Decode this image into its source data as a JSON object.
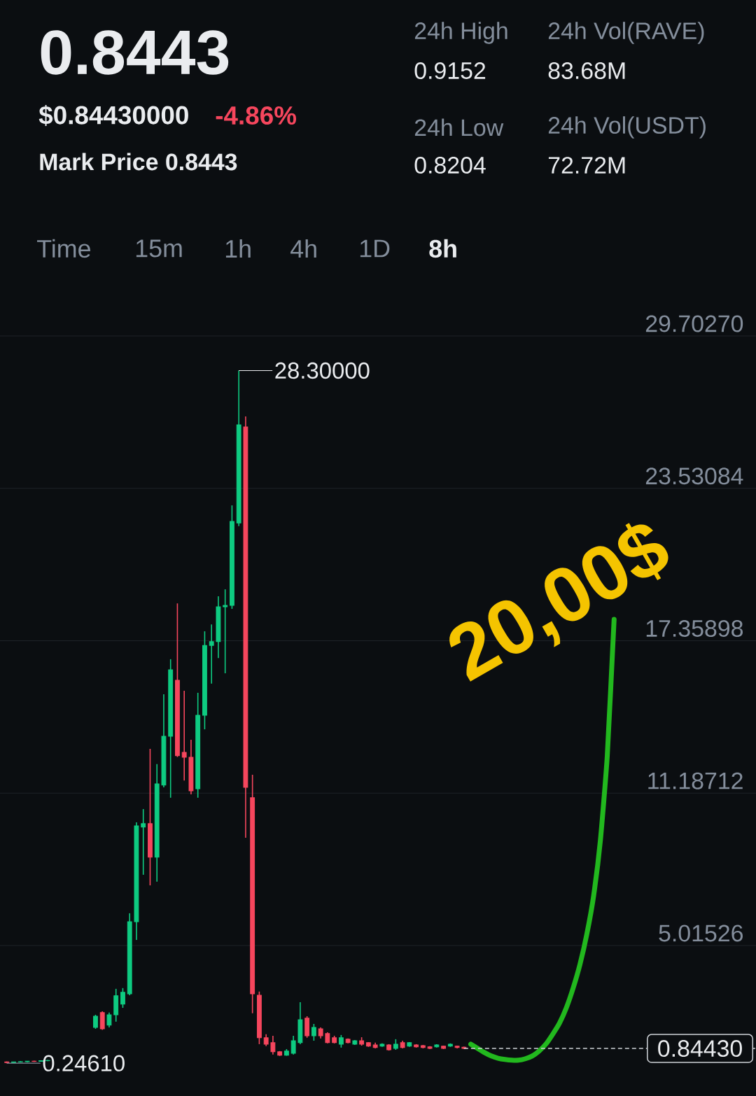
{
  "chart_data": {
    "type": "candlestick",
    "title": "0.8443",
    "annotations": [
      "$0.84430000",
      "-4.86%",
      "Mark Price 0.8443",
      "24h High",
      "0.9152",
      "24h Vol(RAVE)",
      "83.68M",
      "24h Low",
      "0.8204",
      "24h Vol(USDT)",
      "72.72M",
      "Time",
      "15m",
      "1h",
      "4h",
      "1D",
      "8h",
      "20,00$",
      "28.30000",
      "0.24610"
    ],
    "categories": [
      null,
      null,
      null,
      null,
      null,
      null,
      null,
      null,
      null,
      null,
      null,
      null,
      null,
      null,
      null,
      null,
      null,
      null,
      null,
      null,
      null,
      null,
      null,
      null,
      null,
      null,
      null,
      null,
      null,
      null,
      null,
      null,
      null,
      null,
      null,
      null,
      null,
      null,
      null,
      null,
      null,
      null,
      null,
      null,
      null,
      null,
      null,
      null,
      null,
      null,
      null,
      null,
      null,
      null,
      null,
      null,
      null,
      null,
      null,
      null,
      null,
      null,
      null,
      null,
      null,
      null,
      null,
      null,
      null,
      null,
      null,
      null,
      null,
      null,
      null,
      null,
      null,
      null,
      null,
      null,
      null,
      null,
      null,
      null,
      null,
      null,
      null,
      null,
      null,
      null
    ],
    "ohlc": [
      [
        0.3,
        0.32,
        0.2461,
        0.27
      ],
      [
        0.27,
        0.31,
        0.26,
        0.3
      ],
      [
        0.3,
        0.33,
        0.28,
        0.31
      ],
      [
        0.31,
        0.34,
        0.29,
        0.33
      ],
      [
        0.33,
        0.35,
        0.3,
        0.32
      ],
      [
        0.32,
        0.36,
        0.31,
        0.35
      ],
      [
        0.35,
        0.38,
        0.33,
        0.36
      ],
      null,
      null,
      null,
      null,
      null,
      null,
      [
        1.7,
        2.21,
        1.64,
        2.15
      ],
      [
        2.3,
        2.35,
        1.6,
        1.64
      ],
      [
        1.79,
        2.3,
        1.7,
        2.21
      ],
      [
        2.21,
        3.26,
        1.93,
        2.98
      ],
      [
        2.64,
        3.29,
        2.49,
        3.12
      ],
      [
        3.06,
        6.32,
        3.0,
        5.98
      ],
      [
        5.98,
        10.0,
        5.24,
        9.86
      ],
      [
        9.81,
        10.54,
        7.88,
        9.95
      ],
      [
        9.95,
        12.98,
        7.45,
        8.59
      ],
      [
        8.59,
        12.36,
        7.6,
        11.56
      ],
      [
        11.51,
        15.19,
        11.42,
        13.49
      ],
      [
        13.49,
        16.61,
        11.0,
        16.18
      ],
      [
        15.76,
        18.87,
        12.65,
        12.7
      ],
      [
        12.84,
        15.33,
        11.7,
        12.64
      ],
      [
        12.64,
        13.35,
        11.14,
        11.28
      ],
      [
        11.36,
        15.25,
        11.0,
        14.34
      ],
      [
        14.34,
        17.74,
        13.77,
        17.17
      ],
      [
        17.17,
        18.02,
        15.62,
        17.32
      ],
      [
        17.32,
        19.16,
        16.66,
        18.73
      ],
      [
        18.73,
        19.44,
        16.04,
        18.79
      ],
      [
        18.79,
        22.84,
        18.65,
        22.19
      ],
      [
        22.13,
        28.3,
        22.0,
        26.1
      ],
      [
        26.02,
        26.44,
        9.38,
        11.42
      ],
      [
        11.0,
        11.93,
        2.27,
        3.06
      ],
      [
        3.0,
        3.15,
        1.02,
        1.28
      ],
      [
        1.28,
        1.42,
        0.94,
        1.02
      ],
      [
        1.08,
        1.36,
        0.6,
        0.71
      ],
      [
        0.71,
        0.74,
        0.54,
        0.57
      ],
      [
        0.57,
        0.82,
        0.55,
        0.74
      ],
      [
        0.65,
        1.36,
        0.6,
        1.16
      ],
      [
        1.08,
        2.72,
        1.02,
        2.01
      ],
      [
        2.07,
        2.15,
        1.28,
        1.36
      ],
      [
        1.36,
        1.84,
        1.16,
        1.7
      ],
      [
        1.64,
        1.7,
        1.25,
        1.36
      ],
      [
        1.45,
        1.5,
        1.05,
        1.08
      ],
      [
        1.28,
        1.36,
        1.05,
        1.08
      ],
      [
        1.02,
        1.39,
        0.88,
        1.28
      ],
      [
        1.22,
        1.25,
        1.05,
        1.08
      ],
      [
        1.02,
        1.19,
        0.99,
        1.16
      ],
      [
        1.16,
        1.3,
        0.96,
        1.02
      ],
      [
        1.08,
        1.1,
        0.91,
        0.94
      ],
      [
        0.99,
        1.08,
        0.85,
        0.88
      ],
      [
        0.94,
        1.05,
        0.91,
        1.02
      ],
      [
        0.99,
        1.02,
        0.76,
        0.79
      ],
      [
        0.85,
        1.22,
        0.79,
        1.02
      ],
      [
        1.08,
        1.16,
        0.85,
        0.88
      ],
      [
        0.94,
        1.1,
        0.91,
        1.08
      ],
      [
        0.99,
        1.02,
        0.88,
        0.91
      ],
      [
        0.96,
        0.99,
        0.85,
        0.88
      ],
      [
        0.91,
        0.94,
        0.82,
        0.85
      ],
      [
        0.91,
        1.02,
        0.88,
        0.99
      ],
      [
        0.94,
        0.96,
        0.82,
        0.85
      ],
      [
        0.94,
        1.05,
        0.91,
        1.02
      ],
      [
        0.94,
        0.96,
        0.85,
        0.88
      ],
      [
        0.9,
        0.92,
        0.82,
        0.8443
      ],
      null,
      null,
      null,
      null,
      null,
      null,
      null,
      null,
      null,
      null,
      null,
      null,
      null,
      null,
      null,
      null,
      null,
      null,
      null,
      null,
      null,
      null
    ],
    "series": [
      {
        "type": "line",
        "color": "#22b81e",
        "values": [
          null,
          null,
          null,
          null,
          null,
          null,
          null,
          null,
          null,
          null,
          null,
          null,
          null,
          null,
          null,
          null,
          null,
          null,
          null,
          null,
          null,
          null,
          null,
          null,
          null,
          null,
          null,
          null,
          null,
          null,
          null,
          null,
          null,
          null,
          null,
          null,
          null,
          null,
          null,
          null,
          null,
          null,
          null,
          null,
          null,
          null,
          null,
          null,
          null,
          null,
          null,
          null,
          null,
          null,
          null,
          null,
          null,
          null,
          null,
          null,
          null,
          null,
          null,
          null,
          null,
          null,
          null,
          null,
          1.02,
          0.85,
          0.68,
          0.54,
          0.45,
          0.4,
          0.37,
          0.37,
          0.43,
          0.54,
          0.74,
          1.02,
          1.42,
          1.87,
          2.49,
          3.29,
          4.25,
          5.47,
          7.03,
          9.3,
          12.7,
          18.22
        ]
      }
    ],
    "ylim": [
      -1.08,
      29.7027
    ],
    "yticks": [
      5.01526,
      11.18712,
      17.35898,
      23.53084,
      {
        "value": 29.7027,
        "label": "29.70270"
      }
    ],
    "grid": "y",
    "ref_lines": [
      {
        "axis": "y",
        "value": 0.8443,
        "label": "0.84430",
        "line_style": "dashed",
        "color": "#cfd3d8"
      }
    ]
  }
}
